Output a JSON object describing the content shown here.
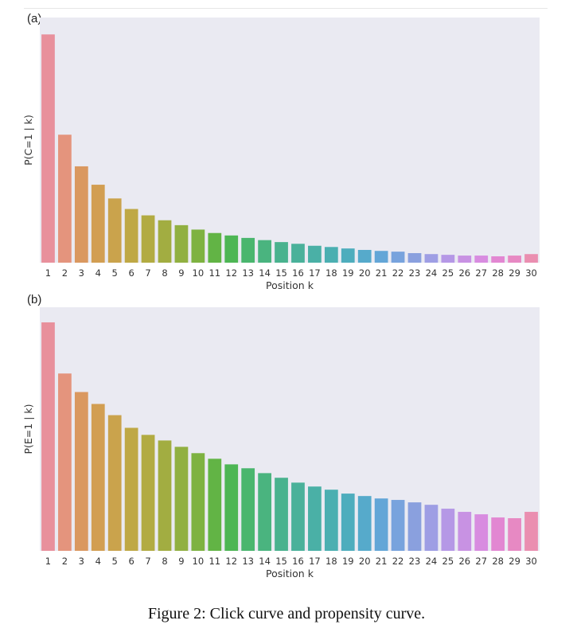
{
  "figure": {
    "caption": "Figure 2: Click curve and propensity curve."
  },
  "chart_data": [
    {
      "type": "bar",
      "panel_label": "(a)",
      "xlabel": "Position k",
      "ylabel": "P(C=1 | k)",
      "ylim": [
        0,
        1
      ],
      "categories": [
        "1",
        "2",
        "3",
        "4",
        "5",
        "6",
        "7",
        "8",
        "9",
        "10",
        "11",
        "12",
        "13",
        "14",
        "15",
        "16",
        "17",
        "18",
        "19",
        "20",
        "21",
        "22",
        "23",
        "24",
        "25",
        "26",
        "27",
        "28",
        "29",
        "30"
      ],
      "values": [
        0.931,
        0.522,
        0.393,
        0.318,
        0.262,
        0.219,
        0.193,
        0.173,
        0.153,
        0.135,
        0.121,
        0.111,
        0.101,
        0.092,
        0.084,
        0.077,
        0.069,
        0.064,
        0.058,
        0.052,
        0.048,
        0.045,
        0.039,
        0.035,
        0.032,
        0.029,
        0.029,
        0.026,
        0.029,
        0.035
      ]
    },
    {
      "type": "bar",
      "panel_label": "(b)",
      "xlabel": "Position k",
      "ylabel": "P(E=1 | k)",
      "ylim": [
        0,
        1
      ],
      "categories": [
        "1",
        "2",
        "3",
        "4",
        "5",
        "6",
        "7",
        "8",
        "9",
        "10",
        "11",
        "12",
        "13",
        "14",
        "15",
        "16",
        "17",
        "18",
        "19",
        "20",
        "21",
        "22",
        "23",
        "24",
        "25",
        "26",
        "27",
        "28",
        "29",
        "30"
      ],
      "values": [
        0.938,
        0.728,
        0.652,
        0.603,
        0.557,
        0.505,
        0.476,
        0.453,
        0.427,
        0.401,
        0.378,
        0.355,
        0.339,
        0.319,
        0.3,
        0.28,
        0.264,
        0.251,
        0.235,
        0.225,
        0.215,
        0.209,
        0.199,
        0.189,
        0.173,
        0.16,
        0.15,
        0.137,
        0.134,
        0.16
      ]
    }
  ],
  "colors": [
    "#e8909c",
    "#e4947d",
    "#da9860",
    "#d29e52",
    "#caa34c",
    "#bfa845",
    "#b2ab42",
    "#a2ad41",
    "#91b041",
    "#7eb241",
    "#62b445",
    "#4db654",
    "#4ab66e",
    "#4ab47f",
    "#49b28e",
    "#4ab19a",
    "#4ab0a6",
    "#4bafb1",
    "#4eadbd",
    "#56aacb",
    "#63a6d7",
    "#78a3dd",
    "#8aa0de",
    "#9e9ee4",
    "#b598e6",
    "#c892e3",
    "#d88ce0",
    "#e287d2",
    "#e789c3",
    "#ea8eb0"
  ]
}
